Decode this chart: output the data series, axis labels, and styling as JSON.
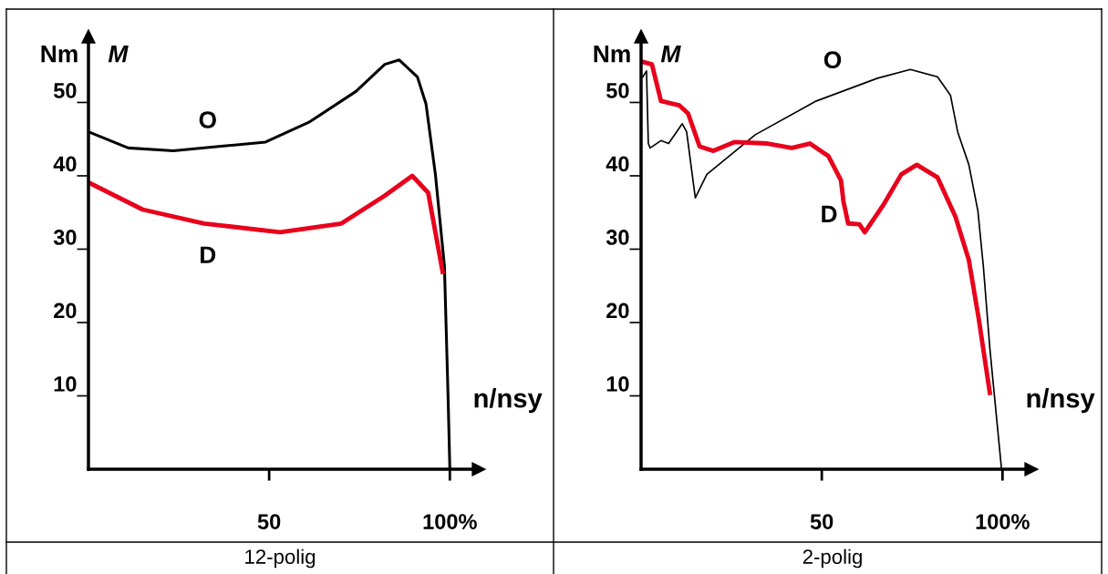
{
  "chart_data": [
    {
      "type": "line",
      "title": "12-polig",
      "xlabel": "n/nsy",
      "ylabel": "Nm",
      "xlim": [
        0,
        108
      ],
      "ylim": [
        0,
        59
      ],
      "xticks": [
        50,
        {
          "value": 100,
          "label": "100%"
        }
      ],
      "yticks": [
        10,
        20,
        30,
        40,
        50
      ],
      "grid": false,
      "legend": false,
      "annotations": [
        "M"
      ],
      "series": [
        {
          "name": "O",
          "color": "#000000",
          "x": [
            0,
            11,
            23.5,
            36,
            49,
            61,
            74,
            82,
            86,
            91,
            93.4,
            96,
            98.5,
            99.5,
            100
          ],
          "values": [
            46,
            43.8,
            43.4,
            44,
            44.6,
            47.3,
            51.5,
            55.2,
            55.8,
            53.5,
            49.8,
            40.2,
            27.7,
            10,
            0
          ]
        },
        {
          "name": "D",
          "color": "#e8001c",
          "x": [
            0,
            15,
            32,
            53,
            70,
            82,
            89.6,
            94,
            98
          ],
          "values": [
            39.1,
            35.4,
            33.5,
            32.3,
            33.5,
            37.3,
            40,
            37.7,
            26.9
          ]
        }
      ]
    },
    {
      "type": "line",
      "title": "2-polig",
      "xlabel": "n/nsy",
      "ylabel": "Nm",
      "xlim": [
        0,
        108
      ],
      "ylim": [
        0,
        59
      ],
      "xticks": [
        50,
        {
          "value": 100,
          "label": "100%"
        }
      ],
      "yticks": [
        10,
        20,
        30,
        40,
        50
      ],
      "grid": false,
      "legend": false,
      "annotations": [
        "M"
      ],
      "series": [
        {
          "name": "O",
          "color": "#000000",
          "x": [
            0.5,
            1.5,
            2,
            2.5,
            5.5,
            7.6,
            11.4,
            12.6,
            15,
            18.2,
            31.6,
            48.5,
            65.4,
            74.5,
            82,
            85.6,
            87.6,
            90.7,
            93.2,
            94.7,
            96.5,
            99.7
          ],
          "values": [
            53.5,
            54.3,
            44.4,
            43.8,
            44.8,
            44.4,
            47.1,
            46,
            37,
            40.2,
            45.6,
            50.2,
            53.3,
            54.5,
            53.5,
            51,
            46,
            41.5,
            35.2,
            27.7,
            16.5,
            0.2
          ]
        },
        {
          "name": "D",
          "color": "#e8001c",
          "x": [
            0,
            3,
            5.5,
            10.6,
            13,
            16.2,
            20,
            25.8,
            35,
            41.7,
            46.7,
            51.8,
            55.3,
            56,
            57.3,
            60.4,
            61.9,
            67,
            72,
            76.3,
            82,
            87,
            90.7,
            93.4,
            96.5
          ],
          "values": [
            55.6,
            55.2,
            50.2,
            49.6,
            48.5,
            44,
            43.4,
            44.6,
            44.4,
            43.8,
            44.4,
            42.7,
            39.4,
            36.5,
            33.5,
            33.4,
            32.3,
            36,
            40.2,
            41.5,
            39.8,
            34.4,
            28.5,
            20.6,
            10.4
          ]
        }
      ]
    }
  ]
}
